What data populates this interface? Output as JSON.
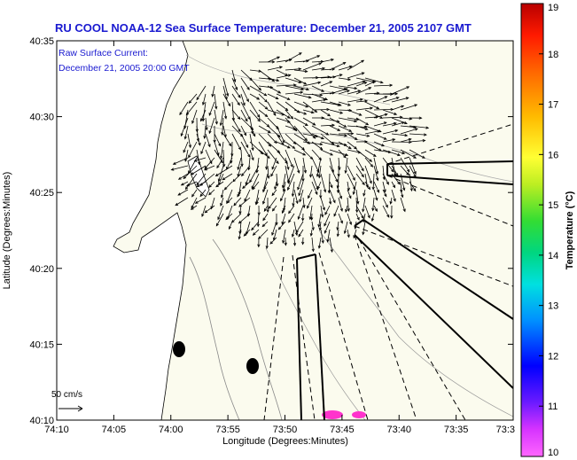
{
  "title": "RU COOL  NOAA-12  Sea Surface Temperature:  December 21, 2005 2107 GMT",
  "annotation": {
    "line1": "Raw Surface Current:",
    "line2": "December 21, 2005 20:00 GMT"
  },
  "scale_label": "50 cm/s",
  "colors": {
    "title": "#1a1ad0",
    "land": "#ffffff",
    "sea": "#fbfbee",
    "hot_patch": "#ff33cc"
  },
  "chart_data": {
    "type": "map",
    "xlabel": "Longitude (Degrees:Minutes)",
    "ylabel": "Latitude (Degrees:Minutes)",
    "x_ticks": [
      "74:10",
      "74:05",
      "74:00",
      "73:55",
      "73:50",
      "73:45",
      "73:40",
      "73:35",
      "73:3"
    ],
    "y_ticks": [
      "40:35",
      "40:30",
      "40:25",
      "40:20",
      "40:15",
      "40:10"
    ],
    "xlim": [
      "74:10",
      "73:30"
    ],
    "ylim": [
      "40:10",
      "40:35"
    ],
    "colorbar": {
      "label": "Temperature (°C)",
      "ticks": [
        "19",
        "18",
        "17",
        "16",
        "15",
        "14",
        "13",
        "12",
        "11",
        "10"
      ],
      "range": [
        10,
        19
      ]
    }
  }
}
